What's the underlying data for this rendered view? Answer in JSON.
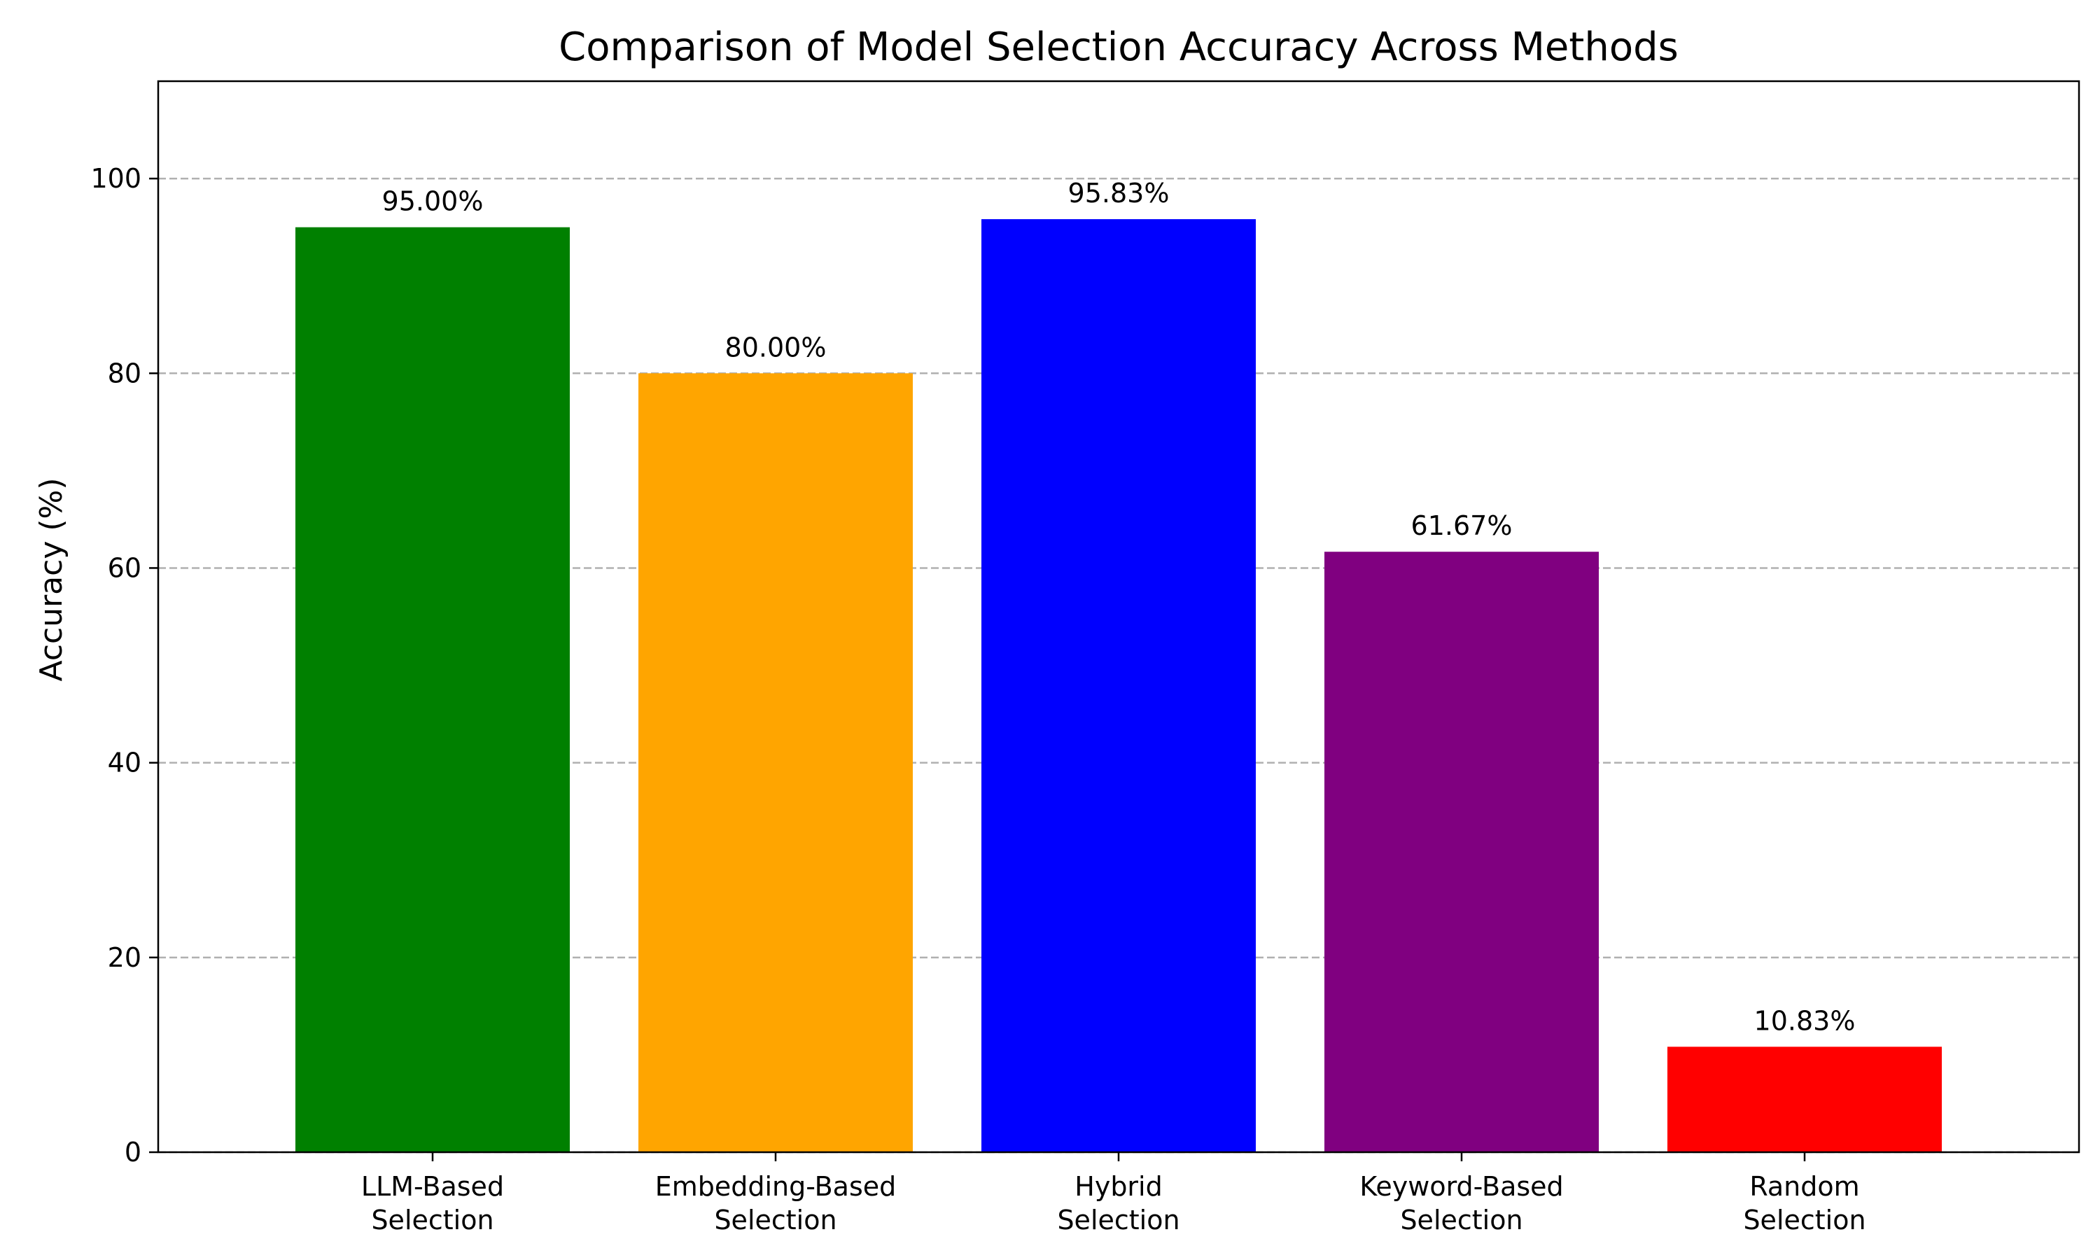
{
  "chart_data": {
    "type": "bar",
    "title": "Comparison of Model Selection Accuracy Across Methods",
    "xlabel": "",
    "ylabel": "Accuracy (%)",
    "categories": [
      [
        "LLM-Based",
        "Selection"
      ],
      [
        "Embedding-Based",
        "Selection"
      ],
      [
        "Hybrid",
        "Selection"
      ],
      [
        "Keyword-Based",
        "Selection"
      ],
      [
        "Random",
        "Selection"
      ]
    ],
    "values": [
      95.0,
      80.0,
      95.83,
      61.67,
      10.83
    ],
    "value_labels": [
      "95.00%",
      "80.00%",
      "95.83%",
      "61.67%",
      "10.83%"
    ],
    "colors": [
      "#008000",
      "#ffa500",
      "#0000ff",
      "#800080",
      "#ff0000"
    ],
    "ylim": [
      0,
      110
    ],
    "yticks": [
      0,
      20,
      40,
      60,
      80,
      100
    ],
    "grid": "y-dashed",
    "legend": "none"
  }
}
